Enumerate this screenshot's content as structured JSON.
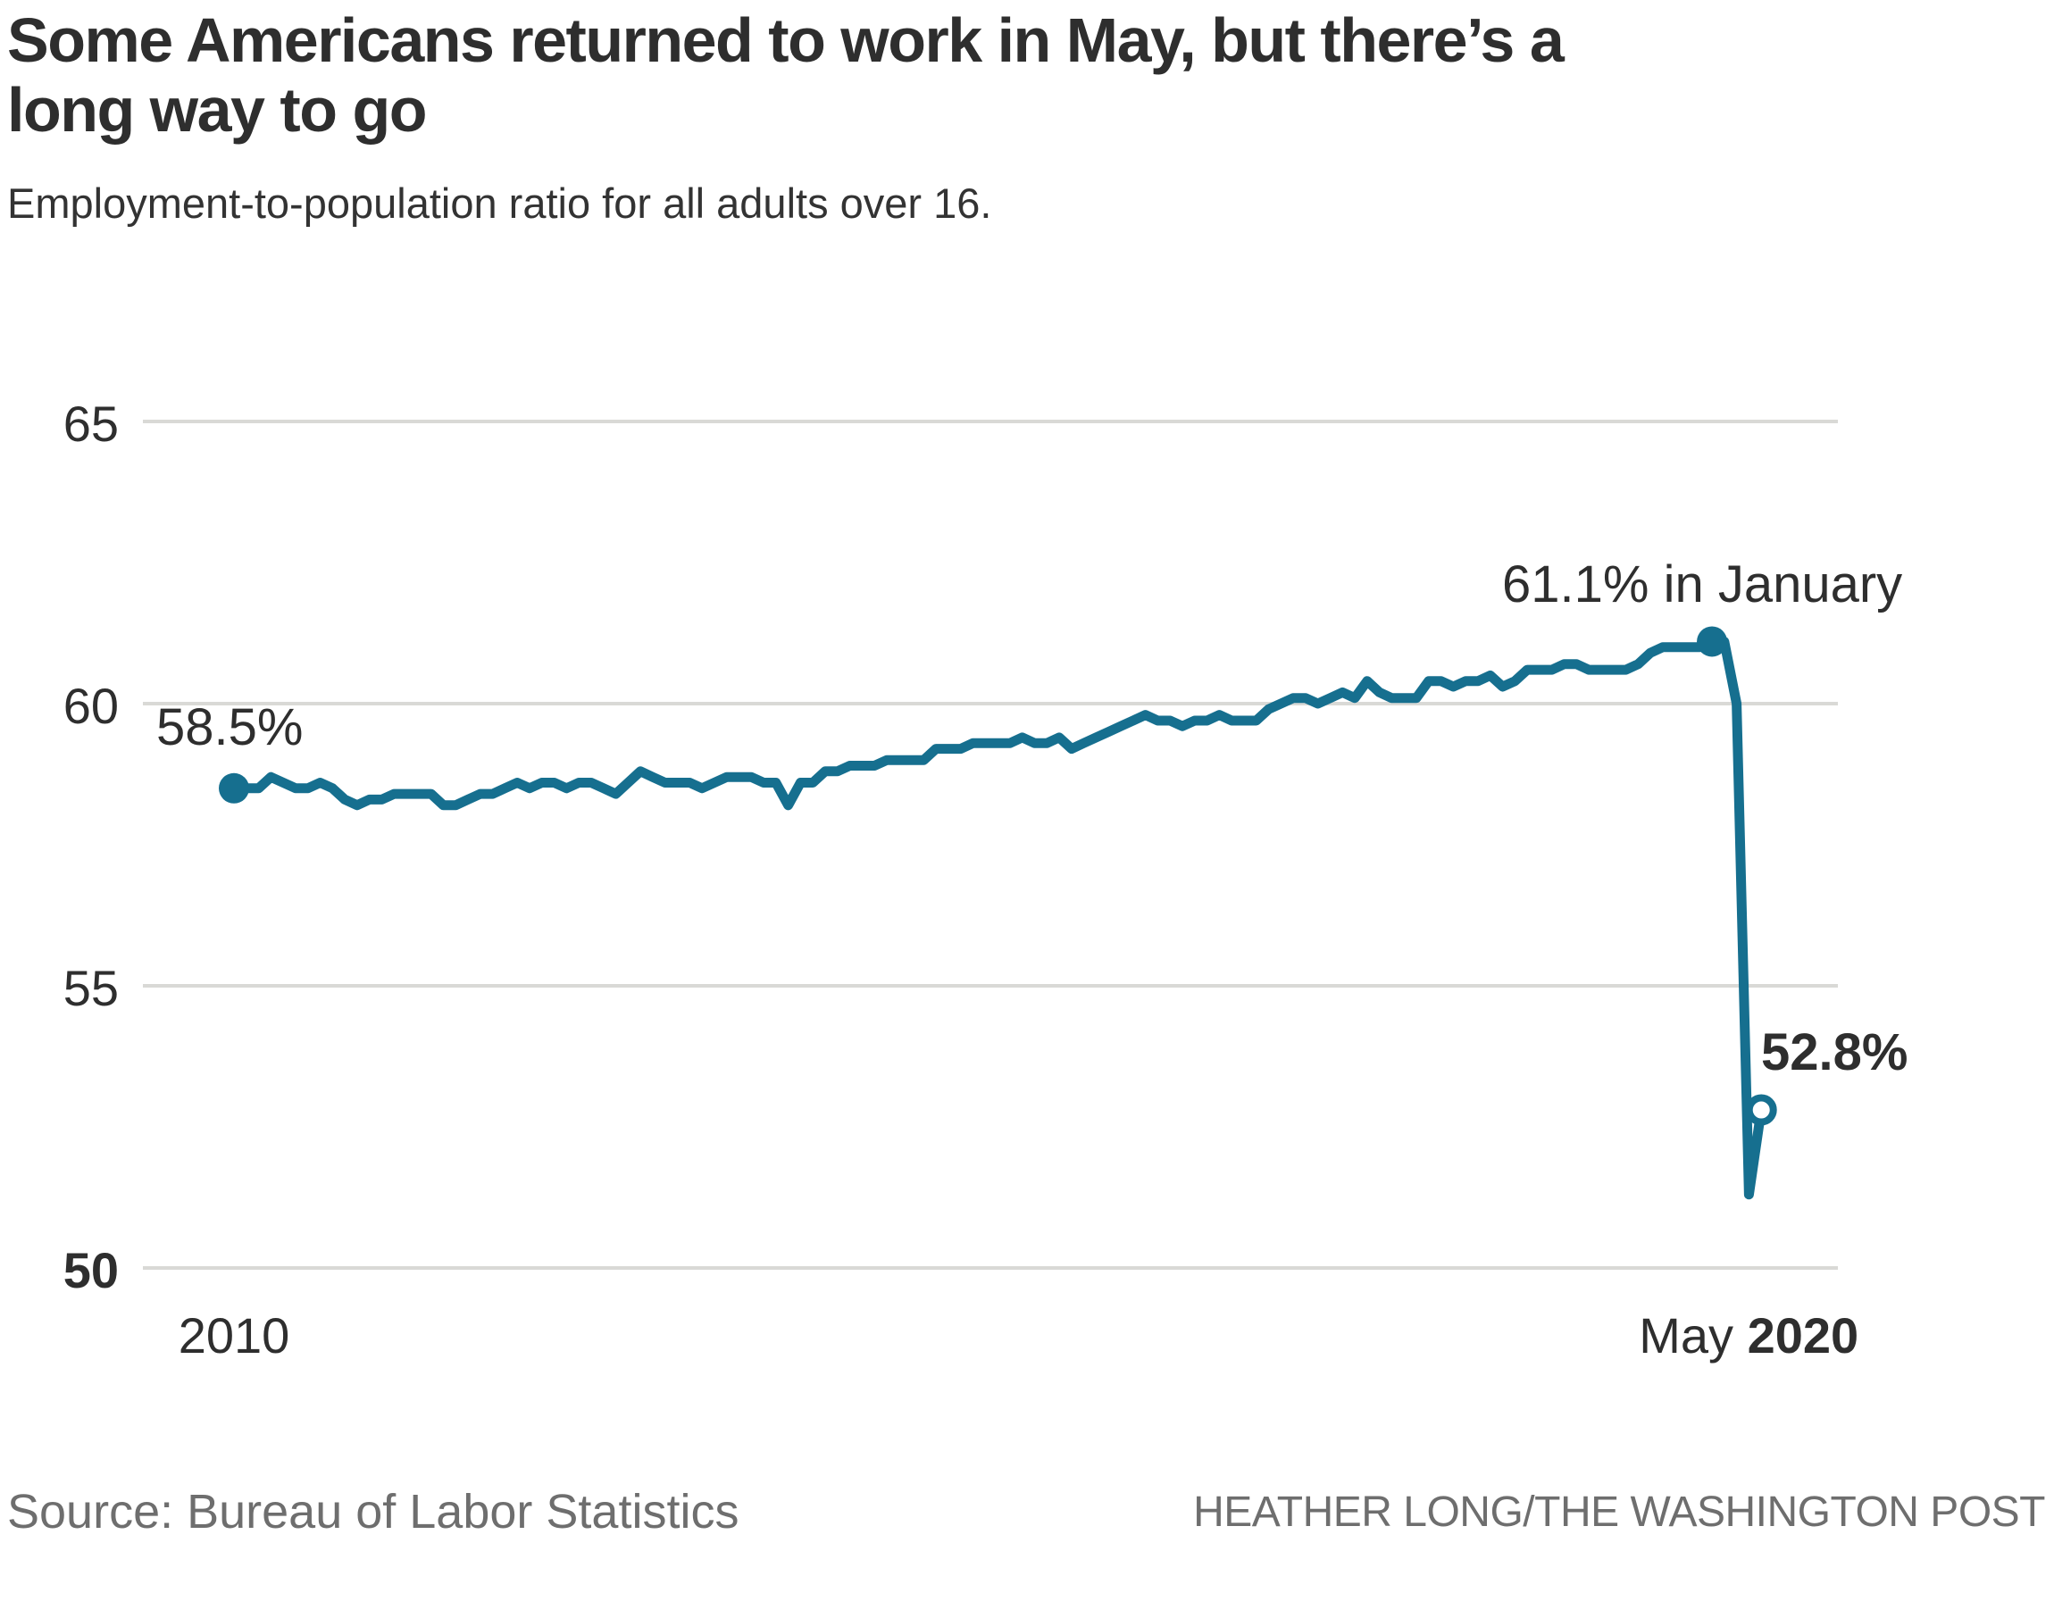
{
  "header": {
    "title_line1": "Some Americans returned to work in May, but there’s a",
    "title_line2": "long way to go",
    "subtitle": "Employment-to-population ratio for all adults over 16."
  },
  "chart_data": {
    "type": "line",
    "title": "Employment-to-population ratio for all adults over 16",
    "unit": "percent",
    "frequency": "monthly",
    "x_start": "2010-01",
    "x_end": "2020-05",
    "n_points": 125,
    "values": [
      58.5,
      58.5,
      58.5,
      58.7,
      58.6,
      58.5,
      58.5,
      58.6,
      58.5,
      58.3,
      58.2,
      58.3,
      58.3,
      58.4,
      58.4,
      58.4,
      58.4,
      58.2,
      58.2,
      58.3,
      58.4,
      58.4,
      58.5,
      58.6,
      58.5,
      58.6,
      58.6,
      58.5,
      58.6,
      58.6,
      58.5,
      58.4,
      58.6,
      58.8,
      58.7,
      58.6,
      58.6,
      58.6,
      58.5,
      58.6,
      58.7,
      58.7,
      58.7,
      58.6,
      58.6,
      58.2,
      58.6,
      58.6,
      58.8,
      58.8,
      58.9,
      58.9,
      58.9,
      59.0,
      59.0,
      59.0,
      59.0,
      59.2,
      59.2,
      59.2,
      59.3,
      59.3,
      59.3,
      59.3,
      59.4,
      59.3,
      59.3,
      59.4,
      59.2,
      59.3,
      59.4,
      59.5,
      59.6,
      59.7,
      59.8,
      59.7,
      59.7,
      59.6,
      59.7,
      59.7,
      59.8,
      59.7,
      59.7,
      59.7,
      59.9,
      60.0,
      60.1,
      60.1,
      60.0,
      60.1,
      60.2,
      60.1,
      60.4,
      60.2,
      60.1,
      60.1,
      60.1,
      60.4,
      60.4,
      60.3,
      60.4,
      60.4,
      60.5,
      60.3,
      60.4,
      60.6,
      60.6,
      60.6,
      60.7,
      60.7,
      60.6,
      60.6,
      60.6,
      60.6,
      60.7,
      60.9,
      61.0,
      61.0,
      61.0,
      61.0,
      61.1,
      61.1,
      60.0,
      51.3,
      52.8
    ],
    "yticks": [
      65,
      60,
      55,
      50
    ],
    "ytick_labels": [
      "65",
      "60",
      "55",
      "50"
    ],
    "ylim": [
      49.5,
      66
    ],
    "grid": "horizontal gridlines at 50, 55, 60, 65",
    "legend": "none",
    "xlabel_left": "2010",
    "xlabel_right_month": "May",
    "xlabel_right_year": "2020",
    "annotations": {
      "start_label": "58.5%",
      "peak_label": "61.1% in January",
      "end_label": "52.8%"
    },
    "line_color": "#166f8f",
    "grid_color": "#d9d9d6"
  },
  "footer": {
    "source": "Source: Bureau of Labor Statistics",
    "credit": "HEATHER LONG/THE WASHINGTON POST"
  }
}
